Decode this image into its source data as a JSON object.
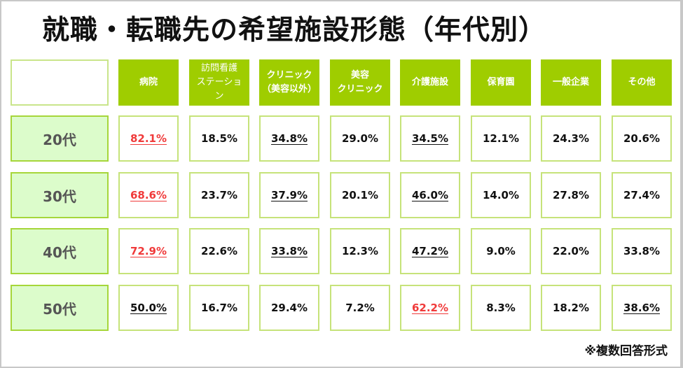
{
  "title": "就職・転職先の希望施設形態（年代別）",
  "note": "※複数回答形式",
  "colors": {
    "header_bg": "#9fcd00",
    "row_label_bg": "#dcfccb",
    "highlight_max": "#f03a3a"
  },
  "chart_data": {
    "type": "table",
    "title": "就職・転職先の希望施設形態（年代別）",
    "columns": [
      "病院",
      "訪問看護ステーション",
      "クリニック（美容以外）",
      "美容クリニック",
      "介護施設",
      "保育園",
      "一般企業",
      "その他"
    ],
    "header_lines": [
      [
        "病院"
      ],
      [
        "訪問看護",
        "ステーショ",
        "ン"
      ],
      [
        "クリニック",
        "（美容以外）"
      ],
      [
        "美容",
        "クリニック"
      ],
      [
        "介護施設"
      ],
      [
        "保育園"
      ],
      [
        "一般企業"
      ],
      [
        "その他"
      ]
    ],
    "rows": [
      {
        "label": "20代",
        "values": [
          "82.1%",
          "18.5%",
          "34.8%",
          "29.0%",
          "34.5%",
          "12.1%",
          "24.3%",
          "20.6%"
        ],
        "styles": [
          "red",
          "plain",
          "u",
          "plain",
          "u",
          "plain",
          "plain",
          "plain"
        ]
      },
      {
        "label": "30代",
        "values": [
          "68.6%",
          "23.7%",
          "37.9%",
          "20.1%",
          "46.0%",
          "14.0%",
          "27.8%",
          "27.4%"
        ],
        "styles": [
          "red",
          "plain",
          "u",
          "plain",
          "u",
          "plain",
          "plain",
          "plain"
        ]
      },
      {
        "label": "40代",
        "values": [
          "72.9%",
          "22.6%",
          "33.8%",
          "12.3%",
          "47.2%",
          "9.0%",
          "22.0%",
          "33.8%"
        ],
        "styles": [
          "red",
          "plain",
          "u",
          "plain",
          "u",
          "plain",
          "plain",
          "plain"
        ]
      },
      {
        "label": "50代",
        "values": [
          "50.0%",
          "16.7%",
          "29.4%",
          "7.2%",
          "62.2%",
          "8.3%",
          "18.2%",
          "38.6%"
        ],
        "styles": [
          "u",
          "plain",
          "plain",
          "plain",
          "red",
          "plain",
          "plain",
          "u"
        ]
      }
    ]
  }
}
